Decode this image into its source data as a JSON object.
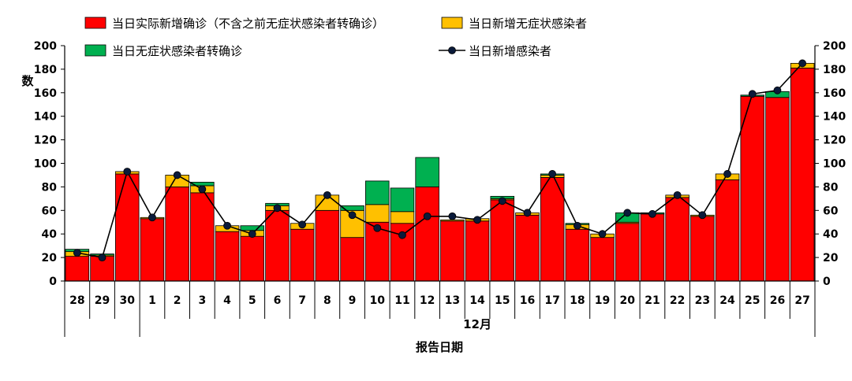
{
  "chart_data": {
    "type": "bar",
    "stacked": true,
    "categories": [
      "28",
      "29",
      "30",
      "1",
      "2",
      "3",
      "4",
      "5",
      "6",
      "7",
      "8",
      "9",
      "10",
      "11",
      "12",
      "13",
      "14",
      "15",
      "16",
      "17",
      "18",
      "19",
      "20",
      "21",
      "22",
      "23",
      "24",
      "25",
      "26",
      "27"
    ],
    "series": [
      {
        "name": "当日实际新增确诊（不含之前无症状感染者转确诊）",
        "color": "#ff0000",
        "values": [
          21,
          21,
          91,
          53,
          80,
          75,
          42,
          38,
          60,
          44,
          60,
          37,
          50,
          49,
          80,
          51,
          51,
          69,
          56,
          88,
          44,
          37,
          49,
          57,
          71,
          55,
          86,
          157,
          156,
          181
        ]
      },
      {
        "name": "当日新增无症状感染者",
        "color": "#ffc000",
        "values": [
          4,
          1,
          2,
          1,
          10,
          6,
          5,
          5,
          4,
          5,
          13,
          23,
          15,
          10,
          0,
          1,
          2,
          1,
          2,
          2,
          4,
          3,
          1,
          0,
          2,
          1,
          5,
          0,
          0,
          4
        ]
      },
      {
        "name": "当日无症状感染者转确诊",
        "color": "#00b050",
        "values": [
          2,
          1,
          0,
          0,
          0,
          3,
          0,
          4,
          2,
          0,
          0,
          4,
          20,
          20,
          25,
          0,
          0,
          2,
          0,
          1,
          1,
          0,
          8,
          1,
          0,
          0,
          0,
          1,
          5,
          0
        ]
      }
    ],
    "line": {
      "name": "当日新增感染者",
      "color": "#000000",
      "marker_color": "#0a1a3a",
      "values": [
        24,
        20,
        93,
        54,
        90,
        78,
        47,
        40,
        62,
        48,
        73,
        56,
        45,
        39,
        55,
        55,
        52,
        68,
        58,
        91,
        47,
        40,
        58,
        57,
        73,
        56,
        91,
        159,
        162,
        185
      ]
    },
    "ylim": [
      0,
      200
    ],
    "yticks": [
      0,
      20,
      40,
      60,
      80,
      100,
      120,
      140,
      160,
      180,
      200
    ],
    "ylabel": "数",
    "xlabel": "报告日期",
    "month_label": "12月",
    "legend_position": "top"
  }
}
